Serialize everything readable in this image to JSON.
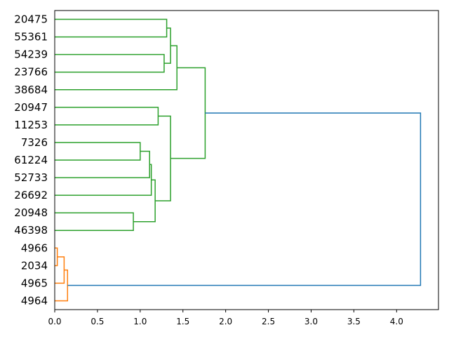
{
  "chart_data": {
    "type": "dendrogram",
    "orientation": "horizontal",
    "xlim": [
      0,
      4.49
    ],
    "x_ticks": [
      "0.0",
      "0.5",
      "1.0",
      "1.5",
      "2.0",
      "2.5",
      "3.0",
      "3.5",
      "4.0"
    ],
    "leaves": [
      "20475",
      "55361",
      "54239",
      "23766",
      "38684",
      "20947",
      "11253",
      "7326",
      "61224",
      "52733",
      "26692",
      "20948",
      "46398",
      "4966",
      "2034",
      "4965",
      "4964"
    ],
    "merges": [
      {
        "children": [
          0,
          1
        ],
        "height": 1.31,
        "color": "#2ca02c"
      },
      {
        "children": [
          2,
          3
        ],
        "height": 1.28,
        "color": "#2ca02c"
      },
      {
        "children": [
          17,
          18
        ],
        "height": 1.355,
        "color": "#2ca02c"
      },
      {
        "children": [
          19,
          4
        ],
        "height": 1.43,
        "color": "#2ca02c"
      },
      {
        "children": [
          5,
          6
        ],
        "height": 1.21,
        "color": "#2ca02c"
      },
      {
        "children": [
          7,
          8
        ],
        "height": 1.0,
        "color": "#2ca02c"
      },
      {
        "children": [
          22,
          9
        ],
        "height": 1.11,
        "color": "#2ca02c"
      },
      {
        "children": [
          23,
          10
        ],
        "height": 1.13,
        "color": "#2ca02c"
      },
      {
        "children": [
          11,
          12
        ],
        "height": 0.92,
        "color": "#2ca02c"
      },
      {
        "children": [
          24,
          25
        ],
        "height": 1.175,
        "color": "#2ca02c"
      },
      {
        "children": [
          21,
          26
        ],
        "height": 1.355,
        "color": "#2ca02c"
      },
      {
        "children": [
          20,
          27
        ],
        "height": 1.76,
        "color": "#2ca02c"
      },
      {
        "children": [
          13,
          14
        ],
        "height": 0.03,
        "color": "#ff7f0e"
      },
      {
        "children": [
          29,
          15
        ],
        "height": 0.11,
        "color": "#ff7f0e"
      },
      {
        "children": [
          30,
          16
        ],
        "height": 0.15,
        "color": "#ff7f0e"
      },
      {
        "children": [
          28,
          31
        ],
        "height": 4.28,
        "color": "#1f77b4"
      }
    ]
  }
}
